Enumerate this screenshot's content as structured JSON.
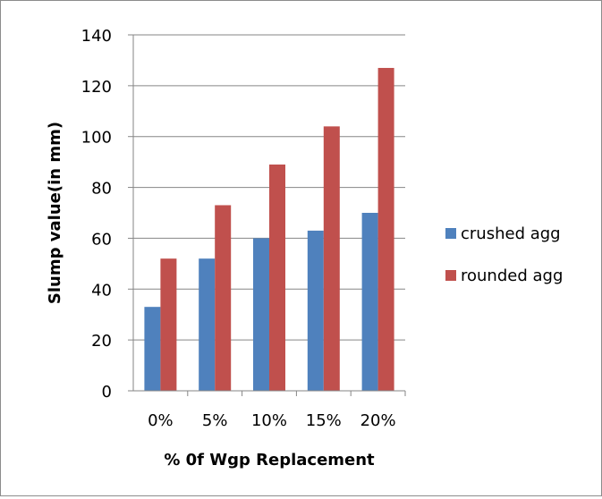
{
  "chart_data": {
    "type": "bar",
    "categories": [
      "0%",
      "5%",
      "10%",
      "15%",
      "20%"
    ],
    "series": [
      {
        "name": "crushed agg",
        "values": [
          33,
          52,
          60,
          63,
          70
        ],
        "color": "#4f81bd"
      },
      {
        "name": "rounded agg",
        "values": [
          52,
          73,
          89,
          104,
          127
        ],
        "color": "#c0504d"
      }
    ],
    "xlabel": "% 0f Wgp Replacement",
    "ylabel": "Slump value(in mm)",
    "ylim": [
      0,
      140
    ],
    "ytick_step": 20,
    "yticks": [
      "0",
      "20",
      "40",
      "60",
      "80",
      "100",
      "120",
      "140"
    ],
    "grid": true,
    "legend_position": "right"
  }
}
